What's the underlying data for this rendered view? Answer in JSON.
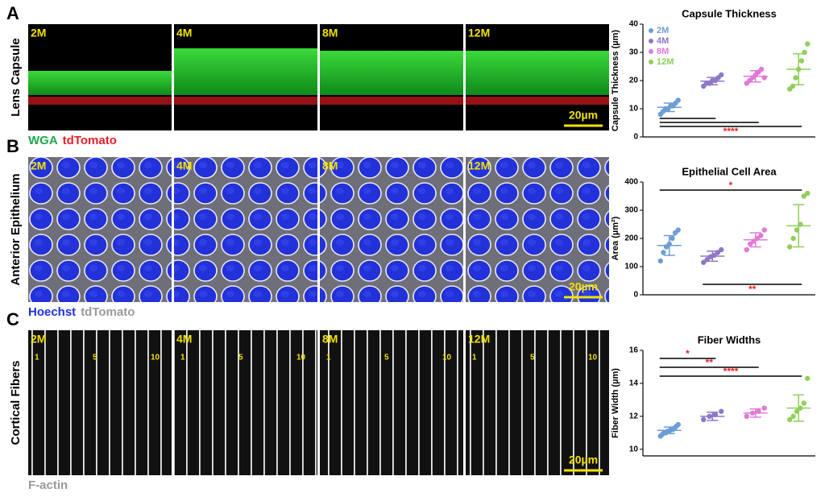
{
  "panels": [
    {
      "letter": "A",
      "row_label": "Lens Capsule",
      "images": [
        "2M",
        "4M",
        "8M",
        "12M"
      ],
      "scale_bar": "20µm",
      "stains": [
        {
          "text": "WGA",
          "color": "#1fa84a"
        },
        {
          "text": "tdTomato",
          "color": "#e8202a"
        }
      ]
    },
    {
      "letter": "B",
      "row_label": "Anterior Epithelium",
      "images": [
        "2M",
        "4M",
        "8M",
        "12M"
      ],
      "scale_bar": "20µm",
      "stains": [
        {
          "text": "Hoechst",
          "color": "#1f2ee0"
        },
        {
          "text": "tdTomato",
          "color": "#9a9a9a"
        }
      ]
    },
    {
      "letter": "C",
      "row_label": "Cortical Fibers",
      "images": [
        "2M",
        "4M",
        "8M",
        "12M"
      ],
      "scale_bar": "20µm",
      "fiber_numbers": [
        "1",
        "5",
        "10"
      ],
      "stains": [
        {
          "text": "F-actin",
          "color": "#9a9a9a"
        }
      ]
    }
  ],
  "chart_data": [
    {
      "type": "scatter",
      "title": "Capsule Thickness",
      "y_label": "Capsule Thickness (µm)",
      "ylim": [
        0,
        40
      ],
      "yticks": [
        0,
        10,
        20,
        30,
        40
      ],
      "legend": "upper left",
      "series": [
        {
          "name": "2M",
          "color": "#6d9dd4",
          "values": [
            8,
            9,
            10,
            10,
            11,
            11,
            12,
            13
          ],
          "mean": 10.5,
          "sd": 1.5
        },
        {
          "name": "4M",
          "color": "#8e78c4",
          "values": [
            18,
            19,
            19,
            20,
            20,
            21,
            22
          ],
          "mean": 19.8,
          "sd": 1.3
        },
        {
          "name": "8M",
          "color": "#e07ad8",
          "values": [
            19,
            20,
            21,
            22,
            23,
            24,
            21
          ],
          "mean": 21.5,
          "sd": 2
        },
        {
          "name": "12M",
          "color": "#8fcf5a",
          "values": [
            17,
            18,
            21,
            24,
            27,
            30,
            33
          ],
          "mean": 24,
          "sd": 5.5
        }
      ],
      "significance": [
        {
          "groups": [
            0,
            1
          ],
          "position": "bottom"
        },
        {
          "groups": [
            0,
            2
          ],
          "position": "bottom"
        },
        {
          "groups": [
            0,
            3
          ],
          "position": "bottom",
          "label": "****"
        }
      ]
    },
    {
      "type": "scatter",
      "title": "Epithelial Cell Area",
      "y_label": "Area (µm²)",
      "ylim": [
        0,
        400
      ],
      "yticks": [
        0,
        100,
        200,
        300,
        400
      ],
      "series": [
        {
          "name": "2M",
          "color": "#6d9dd4",
          "values": [
            120,
            150,
            170,
            180,
            200,
            220,
            230
          ],
          "mean": 175,
          "sd": 35
        },
        {
          "name": "4M",
          "color": "#8e78c4",
          "values": [
            115,
            125,
            135,
            140,
            150,
            160
          ],
          "mean": 137,
          "sd": 18
        },
        {
          "name": "8M",
          "color": "#e07ad8",
          "values": [
            160,
            180,
            190,
            200,
            210,
            230
          ],
          "mean": 195,
          "sd": 25
        },
        {
          "name": "12M",
          "color": "#8fcf5a",
          "values": [
            170,
            200,
            230,
            250,
            350,
            360
          ],
          "mean": 245,
          "sd": 75
        }
      ],
      "significance": [
        {
          "groups": [
            0,
            3
          ],
          "position": "top",
          "label": "*"
        },
        {
          "groups": [
            1,
            3
          ],
          "position": "bottom",
          "label": "**"
        }
      ]
    },
    {
      "type": "scatter",
      "title": "Fiber Widths",
      "y_label": "Fiber Width (µm)",
      "ylim": [
        9.6,
        16
      ],
      "yticks": [
        10,
        12,
        14,
        16
      ],
      "series": [
        {
          "name": "2M",
          "color": "#6d9dd4",
          "values": [
            10.8,
            10.9,
            11.0,
            11.0,
            11.1,
            11.1,
            11.2,
            11.2,
            11.3,
            11.4,
            11.5
          ],
          "mean": 11.15,
          "sd": 0.2
        },
        {
          "name": "4M",
          "color": "#8e78c4",
          "values": [
            11.8,
            12.0,
            12.1,
            12.3
          ],
          "mean": 12.0,
          "sd": 0.25
        },
        {
          "name": "8M",
          "color": "#e07ad8",
          "values": [
            12.0,
            12.2,
            12.3,
            12.5
          ],
          "mean": 12.2,
          "sd": 0.25
        },
        {
          "name": "12M",
          "color": "#8fcf5a",
          "values": [
            11.8,
            12.0,
            12.3,
            12.5,
            12.8,
            14.3
          ],
          "mean": 12.5,
          "sd": 0.8
        }
      ],
      "significance": [
        {
          "groups": [
            0,
            1
          ],
          "position": "top",
          "label": "*"
        },
        {
          "groups": [
            0,
            2
          ],
          "position": "top",
          "label": "**"
        },
        {
          "groups": [
            0,
            3
          ],
          "position": "top",
          "label": "****"
        }
      ]
    }
  ]
}
